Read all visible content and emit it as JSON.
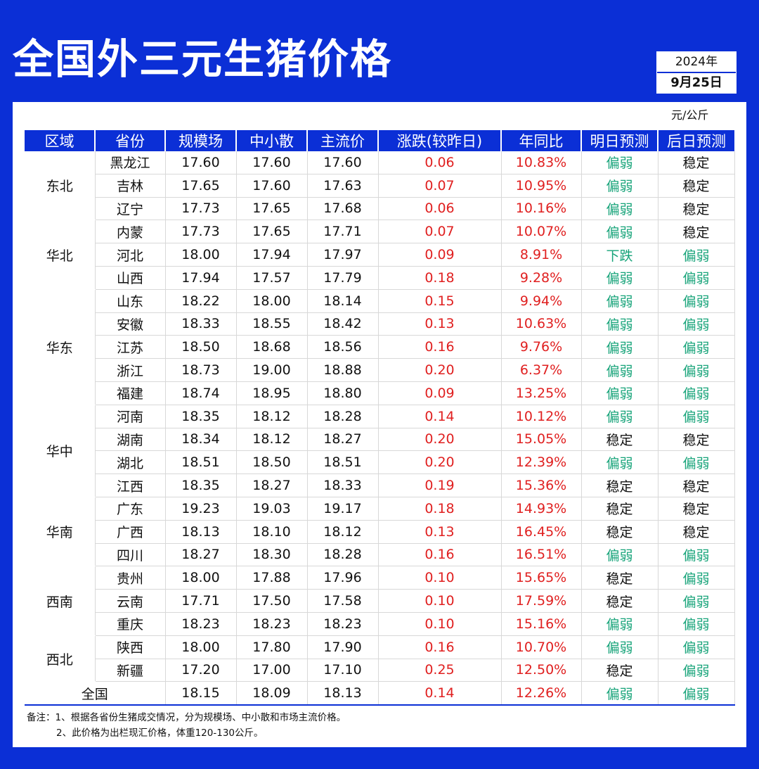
{
  "title": "全国外三元生猪价格",
  "date": {
    "year": "2024年",
    "day": "9月25日"
  },
  "unit": "元/公斤",
  "headers": [
    "区域",
    "省份",
    "规模场",
    "中小散",
    "主流价",
    "涨跌(较昨日)",
    "年同比",
    "明日预测",
    "后日预测"
  ],
  "regions": [
    {
      "name": "东北",
      "rowspan": 3
    },
    {
      "name": "华北",
      "rowspan": 3
    },
    {
      "name": "华东",
      "rowspan": 5
    },
    {
      "name": "华中",
      "rowspan": 4
    },
    {
      "name": "华南",
      "rowspan": 3
    },
    {
      "name": "西南",
      "rowspan": 3
    },
    {
      "name": "西北",
      "rowspan": 2
    }
  ],
  "rows": [
    {
      "province": "黑龙江",
      "scale": "17.60",
      "small": "17.60",
      "main": "17.60",
      "change": "0.06",
      "yoy": "10.83%",
      "tomorrow": "偏弱",
      "after": "稳定"
    },
    {
      "province": "吉林",
      "scale": "17.65",
      "small": "17.60",
      "main": "17.63",
      "change": "0.07",
      "yoy": "10.95%",
      "tomorrow": "偏弱",
      "after": "稳定"
    },
    {
      "province": "辽宁",
      "scale": "17.73",
      "small": "17.65",
      "main": "17.68",
      "change": "0.06",
      "yoy": "10.16%",
      "tomorrow": "偏弱",
      "after": "稳定"
    },
    {
      "province": "内蒙",
      "scale": "17.73",
      "small": "17.65",
      "main": "17.71",
      "change": "0.07",
      "yoy": "10.07%",
      "tomorrow": "偏弱",
      "after": "稳定"
    },
    {
      "province": "河北",
      "scale": "18.00",
      "small": "17.94",
      "main": "17.97",
      "change": "0.09",
      "yoy": "8.91%",
      "tomorrow": "下跌",
      "after": "偏弱"
    },
    {
      "province": "山西",
      "scale": "17.94",
      "small": "17.57",
      "main": "17.79",
      "change": "0.18",
      "yoy": "9.28%",
      "tomorrow": "偏弱",
      "after": "偏弱"
    },
    {
      "province": "山东",
      "scale": "18.22",
      "small": "18.00",
      "main": "18.14",
      "change": "0.15",
      "yoy": "9.94%",
      "tomorrow": "偏弱",
      "after": "偏弱"
    },
    {
      "province": "安徽",
      "scale": "18.33",
      "small": "18.55",
      "main": "18.42",
      "change": "0.13",
      "yoy": "10.63%",
      "tomorrow": "偏弱",
      "after": "偏弱"
    },
    {
      "province": "江苏",
      "scale": "18.50",
      "small": "18.68",
      "main": "18.56",
      "change": "0.16",
      "yoy": "9.76%",
      "tomorrow": "偏弱",
      "after": "偏弱"
    },
    {
      "province": "浙江",
      "scale": "18.73",
      "small": "19.00",
      "main": "18.88",
      "change": "0.20",
      "yoy": "6.37%",
      "tomorrow": "偏弱",
      "after": "偏弱"
    },
    {
      "province": "福建",
      "scale": "18.74",
      "small": "18.95",
      "main": "18.80",
      "change": "0.09",
      "yoy": "13.25%",
      "tomorrow": "偏弱",
      "after": "偏弱"
    },
    {
      "province": "河南",
      "scale": "18.35",
      "small": "18.12",
      "main": "18.28",
      "change": "0.14",
      "yoy": "10.12%",
      "tomorrow": "偏弱",
      "after": "偏弱"
    },
    {
      "province": "湖南",
      "scale": "18.34",
      "small": "18.12",
      "main": "18.27",
      "change": "0.20",
      "yoy": "15.05%",
      "tomorrow": "稳定",
      "after": "稳定"
    },
    {
      "province": "湖北",
      "scale": "18.51",
      "small": "18.50",
      "main": "18.51",
      "change": "0.20",
      "yoy": "12.39%",
      "tomorrow": "偏弱",
      "after": "偏弱"
    },
    {
      "province": "江西",
      "scale": "18.35",
      "small": "18.27",
      "main": "18.33",
      "change": "0.19",
      "yoy": "15.36%",
      "tomorrow": "稳定",
      "after": "稳定"
    },
    {
      "province": "广东",
      "scale": "19.23",
      "small": "19.03",
      "main": "19.17",
      "change": "0.18",
      "yoy": "14.93%",
      "tomorrow": "稳定",
      "after": "稳定"
    },
    {
      "province": "广西",
      "scale": "18.13",
      "small": "18.10",
      "main": "18.12",
      "change": "0.13",
      "yoy": "16.45%",
      "tomorrow": "稳定",
      "after": "稳定"
    },
    {
      "province": "四川",
      "scale": "18.27",
      "small": "18.30",
      "main": "18.28",
      "change": "0.16",
      "yoy": "16.51%",
      "tomorrow": "偏弱",
      "after": "偏弱"
    },
    {
      "province": "贵州",
      "scale": "18.00",
      "small": "17.88",
      "main": "17.96",
      "change": "0.10",
      "yoy": "15.65%",
      "tomorrow": "稳定",
      "after": "偏弱"
    },
    {
      "province": "云南",
      "scale": "17.71",
      "small": "17.50",
      "main": "17.58",
      "change": "0.10",
      "yoy": "17.59%",
      "tomorrow": "稳定",
      "after": "偏弱"
    },
    {
      "province": "重庆",
      "scale": "18.23",
      "small": "18.23",
      "main": "18.23",
      "change": "0.10",
      "yoy": "15.16%",
      "tomorrow": "偏弱",
      "after": "偏弱"
    },
    {
      "province": "陕西",
      "scale": "18.00",
      "small": "17.80",
      "main": "17.90",
      "change": "0.16",
      "yoy": "10.70%",
      "tomorrow": "偏弱",
      "after": "偏弱"
    },
    {
      "province": "新疆",
      "scale": "17.20",
      "small": "17.00",
      "main": "17.10",
      "change": "0.25",
      "yoy": "12.50%",
      "tomorrow": "稳定",
      "after": "偏弱"
    }
  ],
  "total": {
    "label": "全国",
    "scale": "18.15",
    "small": "18.09",
    "main": "18.13",
    "change": "0.14",
    "yoy": "12.26%",
    "tomorrow": "偏弱",
    "after": "偏弱"
  },
  "notes": [
    "备注：1、根据各省份生猪成交情况，分为规模场、中小散和市场主流价格。",
    "2、此价格为出栏现汇价格，体重120-130公斤。"
  ],
  "colors": {
    "brand_blue": "#0b2fd6",
    "up_red": "#e02020",
    "weak_green": "#18a47a"
  }
}
